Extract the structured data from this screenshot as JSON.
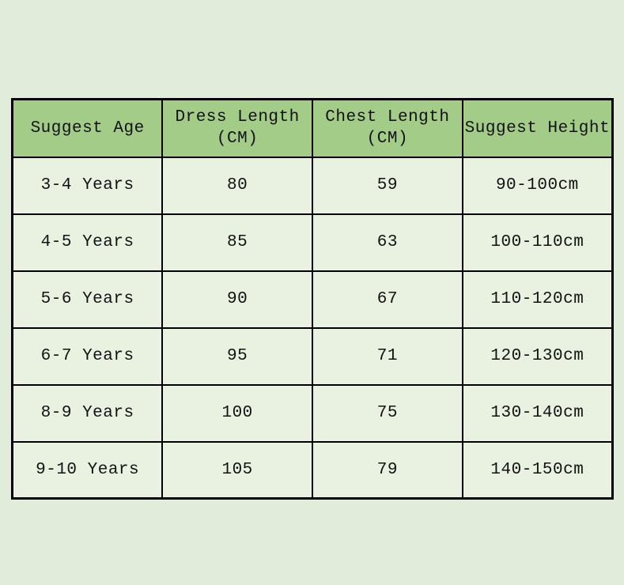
{
  "page": {
    "background_color": "#e2ecdb"
  },
  "table": {
    "header_bg_color": "#a2cc87",
    "cell_bg_color": "#e9f1e0",
    "border_color": "#000000",
    "headers": [
      {
        "line1": "Suggest Age",
        "line2": ""
      },
      {
        "line1": "Dress Length",
        "line2": "(CM)"
      },
      {
        "line1": "Chest Length",
        "line2": "(CM)"
      },
      {
        "line1": "Suggest Height",
        "line2": ""
      }
    ],
    "rows": [
      [
        "3-4 Years",
        "80",
        "59",
        "90-100cm"
      ],
      [
        "4-5 Years",
        "85",
        "63",
        "100-110cm"
      ],
      [
        "5-6 Years",
        "90",
        "67",
        "110-120cm"
      ],
      [
        "6-7 Years",
        "95",
        "71",
        "120-130cm"
      ],
      [
        "8-9 Years",
        "100",
        "75",
        "130-140cm"
      ],
      [
        "9-10 Years",
        "105",
        "79",
        "140-150cm"
      ]
    ]
  },
  "chart_data": {
    "type": "table",
    "title": "",
    "columns": [
      "Suggest Age",
      "Dress Length (CM)",
      "Chest Length (CM)",
      "Suggest Height"
    ],
    "rows": [
      [
        "3-4 Years",
        80,
        59,
        "90-100cm"
      ],
      [
        "4-5 Years",
        85,
        63,
        "100-110cm"
      ],
      [
        "5-6 Years",
        90,
        67,
        "110-120cm"
      ],
      [
        "6-7 Years",
        95,
        71,
        "120-130cm"
      ],
      [
        "8-9 Years",
        100,
        75,
        "130-140cm"
      ],
      [
        "9-10 Years",
        105,
        79,
        "140-150cm"
      ]
    ]
  }
}
